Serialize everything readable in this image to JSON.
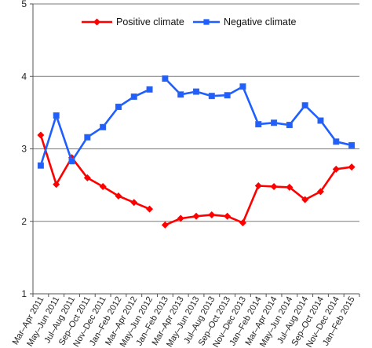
{
  "chart_data": {
    "type": "line",
    "categories": [
      "Mar–Apr 2011",
      "May–Jun 2011",
      "Jul–Aug 2011",
      "Sep–Oct 2011",
      "Nov–Dec 2011",
      "Jan–Feb 2012",
      "Mar–Apr 2012",
      "May–Jun 2012",
      "Jan–Feb 2013",
      "Mar–Apr 2013",
      "May–Jun 2013",
      "Jul–Aug 2013",
      "Sep–Oct 2013",
      "Nov–Dec 2013",
      "Jan–Feb 2014",
      "Mar–Apr 2014",
      "May–Jun 2014",
      "Jul–Aug 2014",
      "Sep–Oct 2014",
      "Nov–Dec 2014",
      "Jan–Feb 2015"
    ],
    "segments": [
      [
        0,
        7
      ],
      [
        8,
        20
      ]
    ],
    "series": [
      {
        "name": "Positive climate",
        "color": "#ff0000",
        "marker": "diamond",
        "values": [
          3.19,
          2.51,
          2.88,
          2.6,
          2.48,
          2.35,
          2.26,
          2.17,
          1.95,
          2.04,
          2.07,
          2.09,
          2.07,
          1.98,
          2.49,
          2.48,
          2.47,
          2.3,
          2.41,
          2.72,
          2.75
        ]
      },
      {
        "name": "Negative climate",
        "color": "#1f5eff",
        "marker": "square",
        "values": [
          2.77,
          3.46,
          2.83,
          3.16,
          3.3,
          3.58,
          3.72,
          3.82,
          3.97,
          3.75,
          3.79,
          3.73,
          3.74,
          3.86,
          3.34,
          3.36,
          3.33,
          3.6,
          3.39,
          3.1,
          3.05
        ]
      }
    ],
    "ylim": [
      1,
      5
    ],
    "yticks": [
      "1",
      "2",
      "3",
      "4",
      "5"
    ],
    "grid": true,
    "legend": "top"
  }
}
